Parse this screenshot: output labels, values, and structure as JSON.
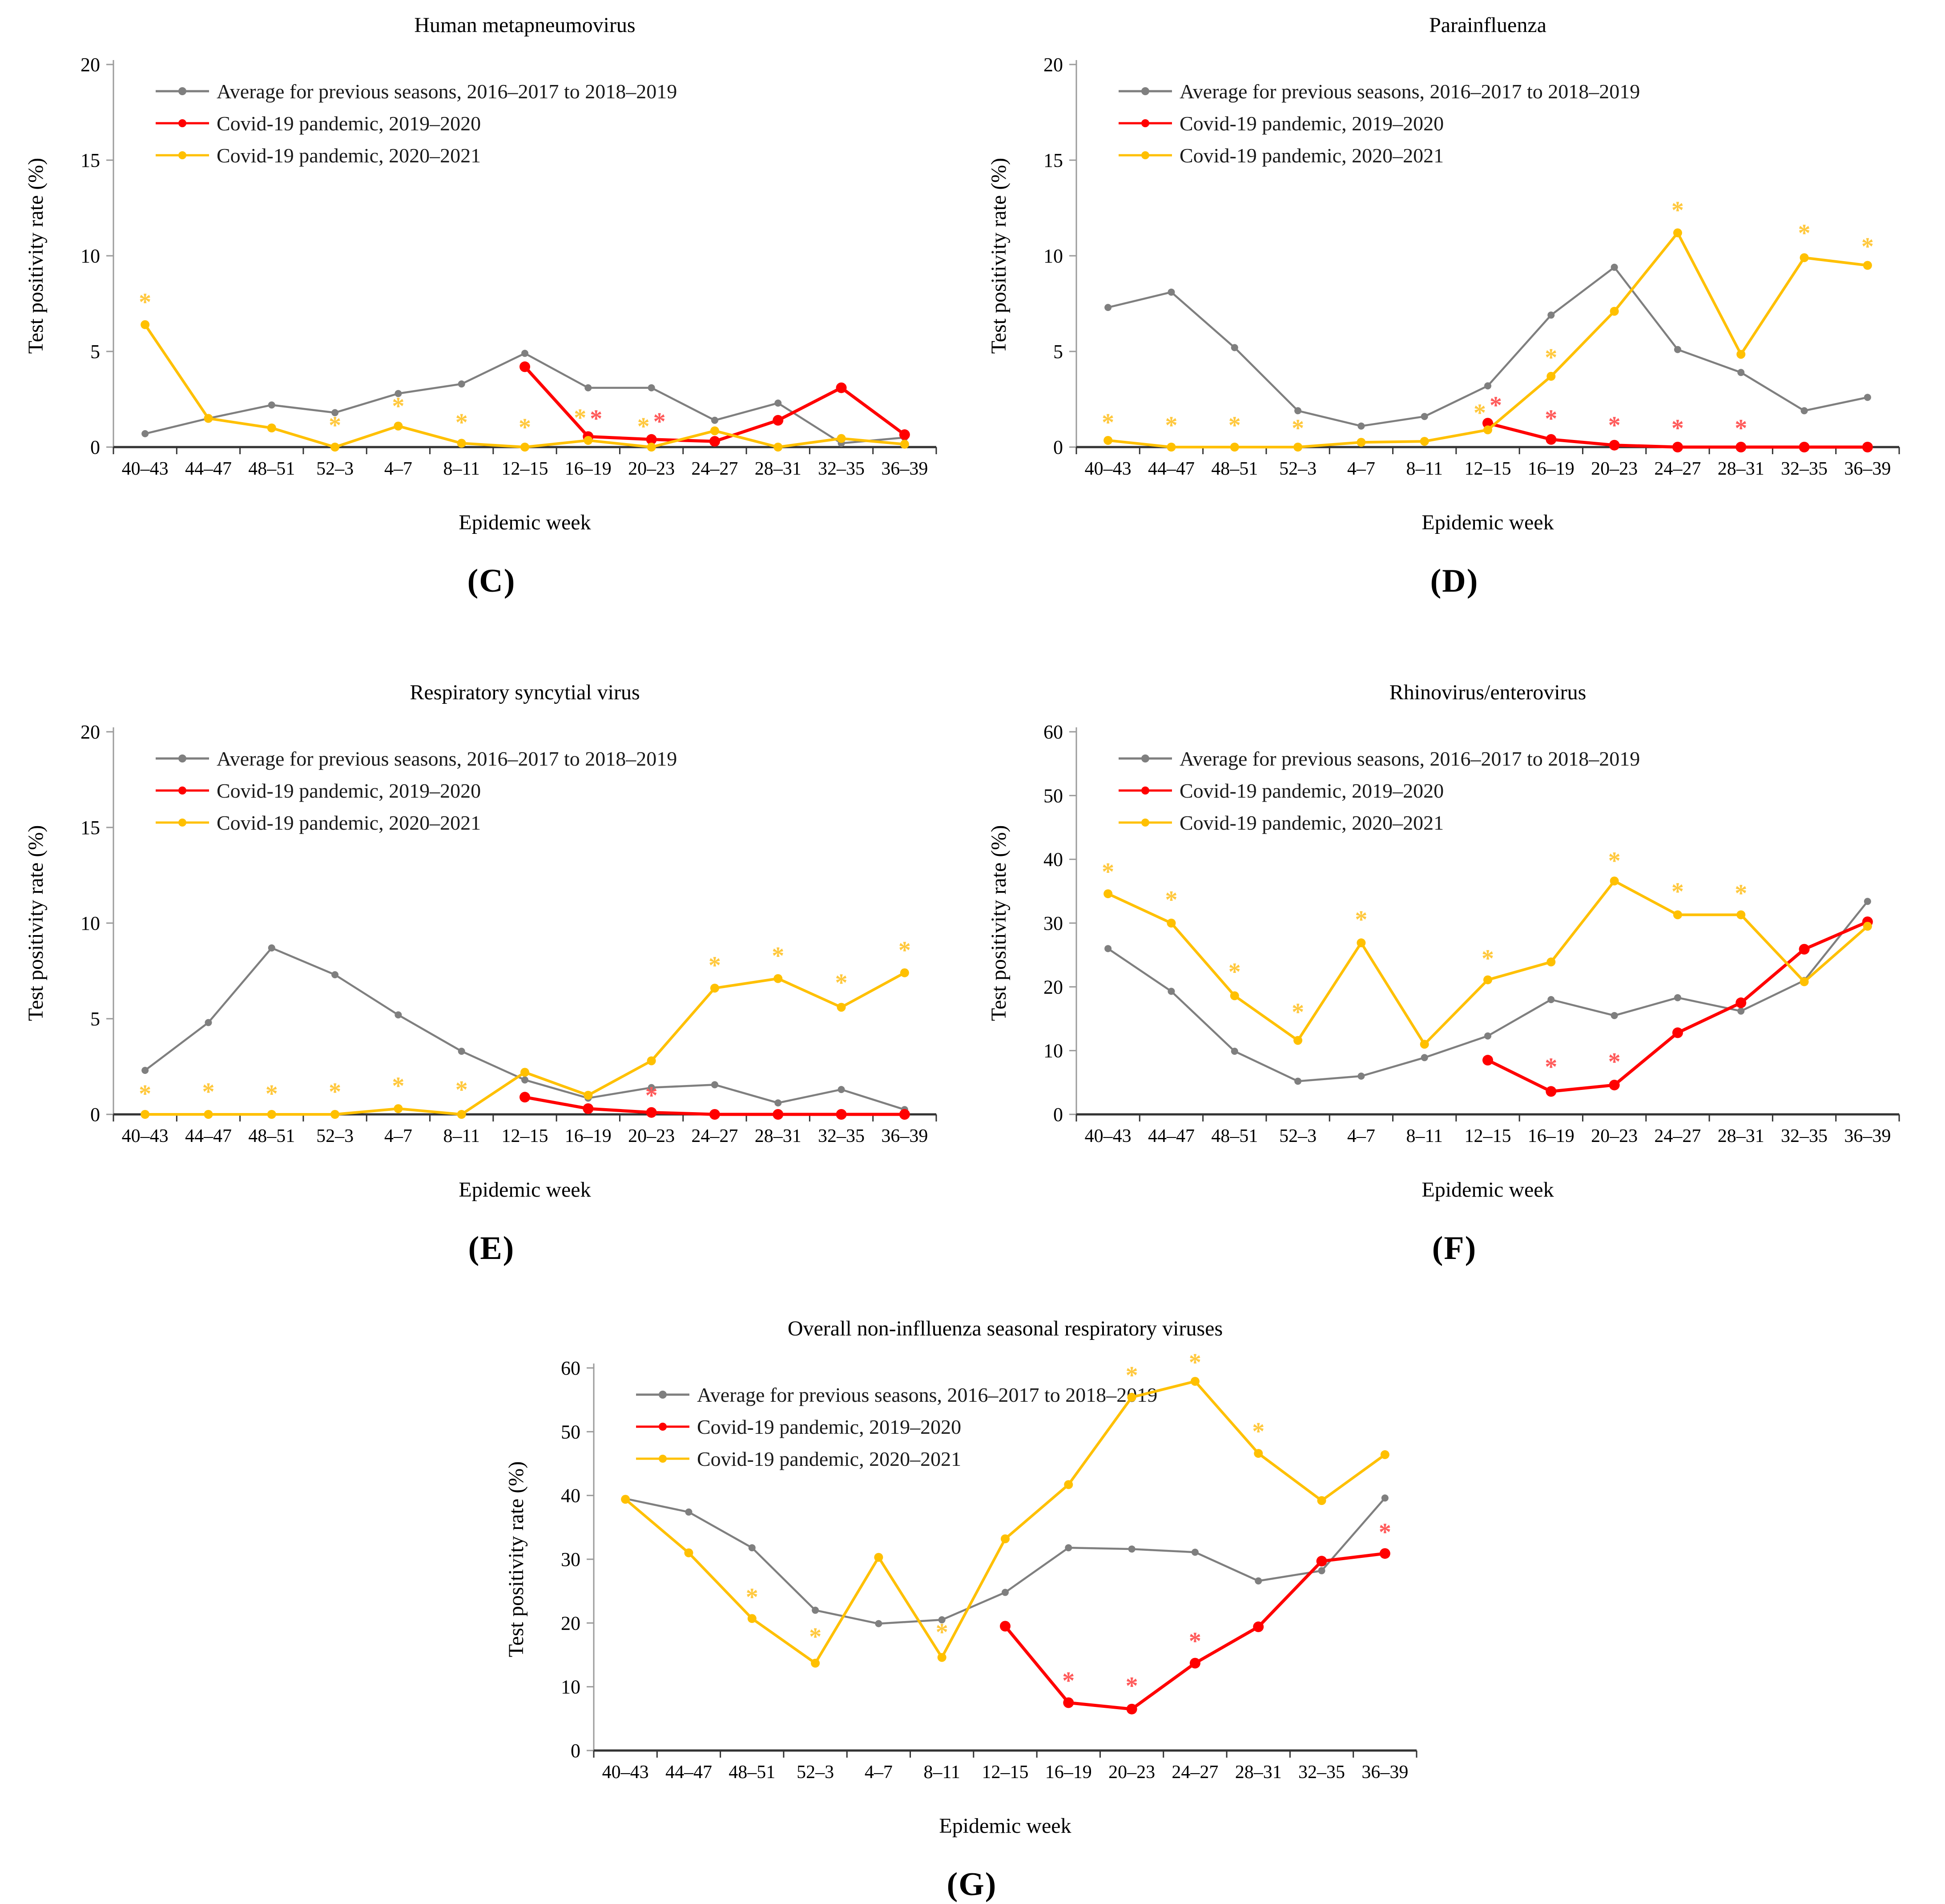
{
  "page": {
    "background": "#ffffff"
  },
  "significance_symbol": "*",
  "axis": {
    "x_label": "Epidemic week",
    "y_label": "Test positivity rate (%)",
    "categories": [
      "40–43",
      "44–47",
      "48–51",
      "52–3",
      "4–7",
      "8–11",
      "12–15",
      "16–19",
      "20–23",
      "24–27",
      "28–31",
      "32–35",
      "36–39"
    ]
  },
  "legend": {
    "items": [
      {
        "label": "Average for previous seasons, 2016–2017 to 2018–2019",
        "color": "#7F7F7F"
      },
      {
        "label": "Covid-19 pandemic, 2019–2020",
        "color": "#FF0000"
      },
      {
        "label": "Covid-19 pandemic, 2020–2021",
        "color": "#FFC000"
      }
    ]
  },
  "chart_data": [
    {
      "type": "line",
      "panel_label": "(C)",
      "title": "Human metapneumovirus",
      "xlabel": "Epidemic week",
      "ylabel": "Test positivity rate (%)",
      "ylim": [
        0,
        20
      ],
      "yticks": [
        0,
        5,
        10,
        15,
        20
      ],
      "grid": false,
      "legend_position": "top-left-inside",
      "categories": [
        "40–43",
        "44–47",
        "48–51",
        "52–3",
        "4–7",
        "8–11",
        "12–15",
        "16–19",
        "20–23",
        "24–27",
        "28–31",
        "32–35",
        "36–39"
      ],
      "series": [
        {
          "name": "Average for previous seasons, 2016–2017 to 2018–2019",
          "color": "#7F7F7F",
          "values": [
            0.7,
            1.5,
            2.2,
            1.8,
            2.8,
            3.3,
            4.9,
            3.1,
            3.1,
            1.4,
            2.3,
            0.2,
            0.5
          ]
        },
        {
          "name": "Covid-19 pandemic, 2019–2020",
          "color": "#FF0000",
          "values": [
            null,
            null,
            null,
            null,
            null,
            null,
            4.2,
            0.55,
            0.4,
            0.3,
            1.4,
            3.1,
            0.65
          ]
        },
        {
          "name": "Covid-19 pandemic, 2020–2021",
          "color": "#FFC000",
          "values": [
            6.4,
            1.5,
            1.0,
            0.0,
            1.1,
            0.2,
            0.0,
            0.35,
            0.0,
            0.85,
            0.0,
            0.45,
            0.15
          ]
        }
      ],
      "asterisks": [
        {
          "x": 0,
          "y": 7.9,
          "color": "#FFC83D"
        },
        {
          "x": 3,
          "y": 1.45,
          "color": "#FFC83D"
        },
        {
          "x": 4,
          "y": 2.45,
          "color": "#FFC83D"
        },
        {
          "x": 5,
          "y": 1.6,
          "color": "#FFC83D"
        },
        {
          "x": 6,
          "y": 1.35,
          "color": "#FFC83D"
        },
        {
          "x": 7,
          "y": 1.85,
          "dx": -18,
          "color": "#FFC83D"
        },
        {
          "x": 7,
          "y": 1.8,
          "dx": 18,
          "color": "#FF5A5A"
        },
        {
          "x": 8,
          "y": 1.4,
          "dx": -18,
          "color": "#FFC83D"
        },
        {
          "x": 8,
          "y": 1.65,
          "dx": 18,
          "color": "#FF5A5A"
        }
      ]
    },
    {
      "type": "line",
      "panel_label": "(D)",
      "title": "Parainfluenza",
      "xlabel": "Epidemic week",
      "ylabel": "Test positivity rate (%)",
      "ylim": [
        0,
        20
      ],
      "yticks": [
        0,
        5,
        10,
        15,
        20
      ],
      "grid": false,
      "legend_position": "top-left-inside",
      "categories": [
        "40–43",
        "44–47",
        "48–51",
        "52–3",
        "4–7",
        "8–11",
        "12–15",
        "16–19",
        "20–23",
        "24–27",
        "28–31",
        "32–35",
        "36–39"
      ],
      "series": [
        {
          "name": "Average for previous seasons, 2016–2017 to 2018–2019",
          "color": "#7F7F7F",
          "values": [
            7.3,
            8.1,
            5.2,
            1.9,
            1.1,
            1.6,
            3.2,
            6.9,
            9.4,
            5.1,
            3.9,
            1.9,
            2.6
          ]
        },
        {
          "name": "Covid-19 pandemic, 2019–2020",
          "color": "#FF0000",
          "values": [
            null,
            null,
            null,
            null,
            null,
            null,
            1.25,
            0.4,
            0.1,
            0.0,
            0.0,
            0.0,
            0.0
          ]
        },
        {
          "name": "Covid-19 pandemic, 2020–2021",
          "color": "#FFC000",
          "values": [
            0.35,
            0.0,
            0.0,
            0.0,
            0.25,
            0.3,
            0.9,
            3.7,
            7.1,
            11.2,
            4.85,
            9.9,
            9.5
          ]
        }
      ],
      "asterisks": [
        {
          "x": 0,
          "y": 1.6,
          "color": "#FFC83D"
        },
        {
          "x": 1,
          "y": 1.45,
          "color": "#FFC83D"
        },
        {
          "x": 2,
          "y": 1.45,
          "color": "#FFC83D"
        },
        {
          "x": 3,
          "y": 1.3,
          "color": "#FFC83D"
        },
        {
          "x": 6,
          "y": 2.1,
          "dx": -18,
          "color": "#FFC83D"
        },
        {
          "x": 6,
          "y": 2.5,
          "dx": 18,
          "color": "#FF5A5A"
        },
        {
          "x": 7,
          "y": 5.0,
          "color": "#FFC83D"
        },
        {
          "x": 7,
          "y": 1.8,
          "color": "#FF5A5A"
        },
        {
          "x": 8,
          "y": 1.45,
          "color": "#FF5A5A"
        },
        {
          "x": 9,
          "y": 12.7,
          "color": "#FFC83D"
        },
        {
          "x": 9,
          "y": 1.3,
          "color": "#FF5A5A"
        },
        {
          "x": 10,
          "y": 1.3,
          "color": "#FF5A5A"
        },
        {
          "x": 11,
          "y": 11.5,
          "color": "#FFC83D"
        },
        {
          "x": 12,
          "y": 10.8,
          "color": "#FFC83D"
        }
      ]
    },
    {
      "type": "line",
      "panel_label": "(E)",
      "title": "Respiratory syncytial virus",
      "xlabel": "Epidemic week",
      "ylabel": "Test positivity rate (%)",
      "ylim": [
        0,
        20
      ],
      "yticks": [
        0,
        5,
        10,
        15,
        20
      ],
      "grid": false,
      "legend_position": "top-left-inside",
      "categories": [
        "40–43",
        "44–47",
        "48–51",
        "52–3",
        "4–7",
        "8–11",
        "12–15",
        "16–19",
        "20–23",
        "24–27",
        "28–31",
        "32–35",
        "36–39"
      ],
      "series": [
        {
          "name": "Average for previous seasons, 2016–2017 to 2018–2019",
          "color": "#7F7F7F",
          "values": [
            2.3,
            4.8,
            8.7,
            7.3,
            5.2,
            3.3,
            1.8,
            0.85,
            1.4,
            1.55,
            0.6,
            1.3,
            0.25
          ]
        },
        {
          "name": "Covid-19 pandemic, 2019–2020",
          "color": "#FF0000",
          "values": [
            null,
            null,
            null,
            null,
            null,
            null,
            0.9,
            0.3,
            0.1,
            0.0,
            0.0,
            0.0,
            0.0
          ]
        },
        {
          "name": "Covid-19 pandemic, 2020–2021",
          "color": "#FFC000",
          "values": [
            0.0,
            0.0,
            0.0,
            0.0,
            0.3,
            0.0,
            2.2,
            1.0,
            2.8,
            6.6,
            7.1,
            5.6,
            7.4
          ]
        }
      ],
      "asterisks": [
        {
          "x": 0,
          "y": 1.4,
          "color": "#FFC83D"
        },
        {
          "x": 1,
          "y": 1.5,
          "color": "#FFC83D"
        },
        {
          "x": 2,
          "y": 1.4,
          "color": "#FFC83D"
        },
        {
          "x": 3,
          "y": 1.5,
          "color": "#FFC83D"
        },
        {
          "x": 4,
          "y": 1.8,
          "color": "#FFC83D"
        },
        {
          "x": 5,
          "y": 1.6,
          "color": "#FFC83D"
        },
        {
          "x": 8,
          "y": 1.3,
          "color": "#FF5A5A"
        },
        {
          "x": 9,
          "y": 8.1,
          "color": "#FFC83D"
        },
        {
          "x": 10,
          "y": 8.6,
          "color": "#FFC83D"
        },
        {
          "x": 11,
          "y": 7.2,
          "color": "#FFC83D"
        },
        {
          "x": 12,
          "y": 8.9,
          "color": "#FFC83D"
        }
      ]
    },
    {
      "type": "line",
      "panel_label": "(F)",
      "title": "Rhinovirus/enterovirus",
      "xlabel": "Epidemic week",
      "ylabel": "Test positivity rate (%)",
      "ylim": [
        0,
        60
      ],
      "yticks": [
        0,
        10,
        20,
        30,
        40,
        50,
        60
      ],
      "grid": false,
      "legend_position": "top-left-inside",
      "categories": [
        "40–43",
        "44–47",
        "48–51",
        "52–3",
        "4–7",
        "8–11",
        "12–15",
        "16–19",
        "20–23",
        "24–27",
        "28–31",
        "32–35",
        "36–39"
      ],
      "series": [
        {
          "name": "Average for previous seasons, 2016–2017 to 2018–2019",
          "color": "#7F7F7F",
          "values": [
            26.0,
            19.3,
            9.9,
            5.2,
            6.0,
            8.9,
            12.3,
            18.0,
            15.5,
            18.3,
            16.2,
            21.0,
            33.4
          ]
        },
        {
          "name": "Covid-19 pandemic, 2019–2020",
          "color": "#FF0000",
          "values": [
            null,
            null,
            null,
            null,
            null,
            null,
            8.5,
            3.6,
            4.6,
            12.8,
            17.5,
            25.9,
            30.2
          ]
        },
        {
          "name": "Covid-19 pandemic, 2020–2021",
          "color": "#FFC000",
          "values": [
            34.6,
            30.0,
            18.6,
            11.6,
            26.9,
            11.0,
            21.1,
            23.9,
            36.6,
            31.3,
            31.3,
            20.8,
            29.5
          ]
        }
      ],
      "asterisks": [
        {
          "x": 0,
          "y": 39.0,
          "color": "#FFC83D"
        },
        {
          "x": 1,
          "y": 34.6,
          "color": "#FFC83D"
        },
        {
          "x": 2,
          "y": 23.3,
          "color": "#FFC83D"
        },
        {
          "x": 3,
          "y": 17.0,
          "color": "#FFC83D"
        },
        {
          "x": 4,
          "y": 31.5,
          "color": "#FFC83D"
        },
        {
          "x": 6,
          "y": 25.4,
          "color": "#FFC83D"
        },
        {
          "x": 7,
          "y": 8.4,
          "color": "#FF5A5A"
        },
        {
          "x": 8,
          "y": 40.7,
          "color": "#FFC83D"
        },
        {
          "x": 8,
          "y": 9.2,
          "color": "#FF5A5A"
        },
        {
          "x": 9,
          "y": 35.9,
          "color": "#FFC83D"
        },
        {
          "x": 10,
          "y": 35.6,
          "color": "#FFC83D"
        }
      ]
    },
    {
      "type": "line",
      "panel_label": "(G)",
      "title": "Overall non-inflluenza seasonal respiratory viruses",
      "xlabel": "Epidemic week",
      "ylabel": "Test positivity rate (%)",
      "ylim": [
        0,
        60
      ],
      "yticks": [
        0,
        10,
        20,
        30,
        40,
        50,
        60
      ],
      "grid": false,
      "legend_position": "top-left-inside",
      "categories": [
        "40–43",
        "44–47",
        "48–51",
        "52–3",
        "4–7",
        "8–11",
        "12–15",
        "16–19",
        "20–23",
        "24–27",
        "28–31",
        "32–35",
        "36–39"
      ],
      "series": [
        {
          "name": "Average for previous seasons, 2016–2017 to 2018–2019",
          "color": "#7F7F7F",
          "values": [
            39.5,
            37.4,
            31.8,
            22.0,
            19.9,
            20.5,
            24.8,
            31.8,
            31.6,
            31.1,
            26.6,
            28.2,
            39.6
          ]
        },
        {
          "name": "Covid-19 pandemic, 2019–2020",
          "color": "#FF0000",
          "values": [
            null,
            null,
            null,
            null,
            null,
            null,
            19.5,
            7.5,
            6.5,
            13.7,
            19.4,
            29.7,
            30.9
          ]
        },
        {
          "name": "Covid-19 pandemic, 2020–2021",
          "color": "#FFC000",
          "values": [
            39.4,
            31.0,
            20.7,
            13.7,
            30.3,
            14.6,
            33.2,
            41.7,
            55.4,
            57.9,
            46.6,
            39.2,
            46.4
          ]
        }
      ],
      "asterisks": [
        {
          "x": 2,
          "y": 25.0,
          "color": "#FFC83D"
        },
        {
          "x": 3,
          "y": 18.8,
          "color": "#FFC83D"
        },
        {
          "x": 5,
          "y": 19.5,
          "color": "#FFC83D"
        },
        {
          "x": 7,
          "y": 11.9,
          "color": "#FF5A5A"
        },
        {
          "x": 8,
          "y": 59.8,
          "color": "#FFC83D"
        },
        {
          "x": 8,
          "y": 11.1,
          "color": "#FF5A5A"
        },
        {
          "x": 9,
          "y": 61.8,
          "color": "#FFC83D"
        },
        {
          "x": 9,
          "y": 18.1,
          "color": "#FF5A5A"
        },
        {
          "x": 10,
          "y": 51.0,
          "color": "#FFC83D"
        },
        {
          "x": 12,
          "y": 35.2,
          "color": "#FF5A5A"
        }
      ]
    }
  ]
}
